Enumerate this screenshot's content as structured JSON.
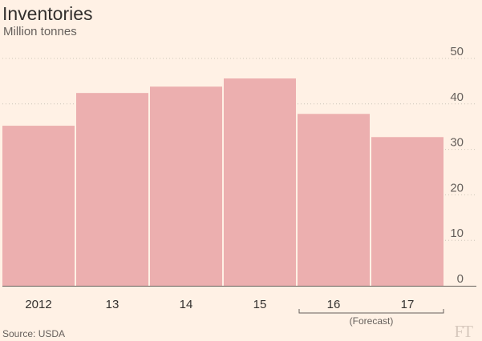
{
  "header": {
    "title": "Inventories",
    "subtitle": "Million tonnes"
  },
  "footer": {
    "source": "Source: USDA",
    "logo": "FT"
  },
  "colors": {
    "background": "#fff1e5",
    "bar": "#ecafaf",
    "grid": "#cec6b9",
    "axis": "#66605c",
    "text": "#33302e"
  },
  "chart_data": {
    "type": "bar",
    "title": "Inventories",
    "subtitle": "Million tonnes",
    "categories": [
      "2012",
      "13",
      "14",
      "15",
      "16",
      "17"
    ],
    "values": [
      35.2,
      42.4,
      43.8,
      45.6,
      37.8,
      32.7
    ],
    "ylim": [
      0,
      50
    ],
    "yticks": [
      0,
      10,
      20,
      30,
      40,
      50
    ],
    "ytick_labels": [
      "0",
      "10",
      "20",
      "30",
      "40",
      "50"
    ],
    "y_axis_side": "right",
    "grid": true,
    "forecast_label": "(Forecast)",
    "forecast_categories": [
      "16",
      "17"
    ]
  }
}
